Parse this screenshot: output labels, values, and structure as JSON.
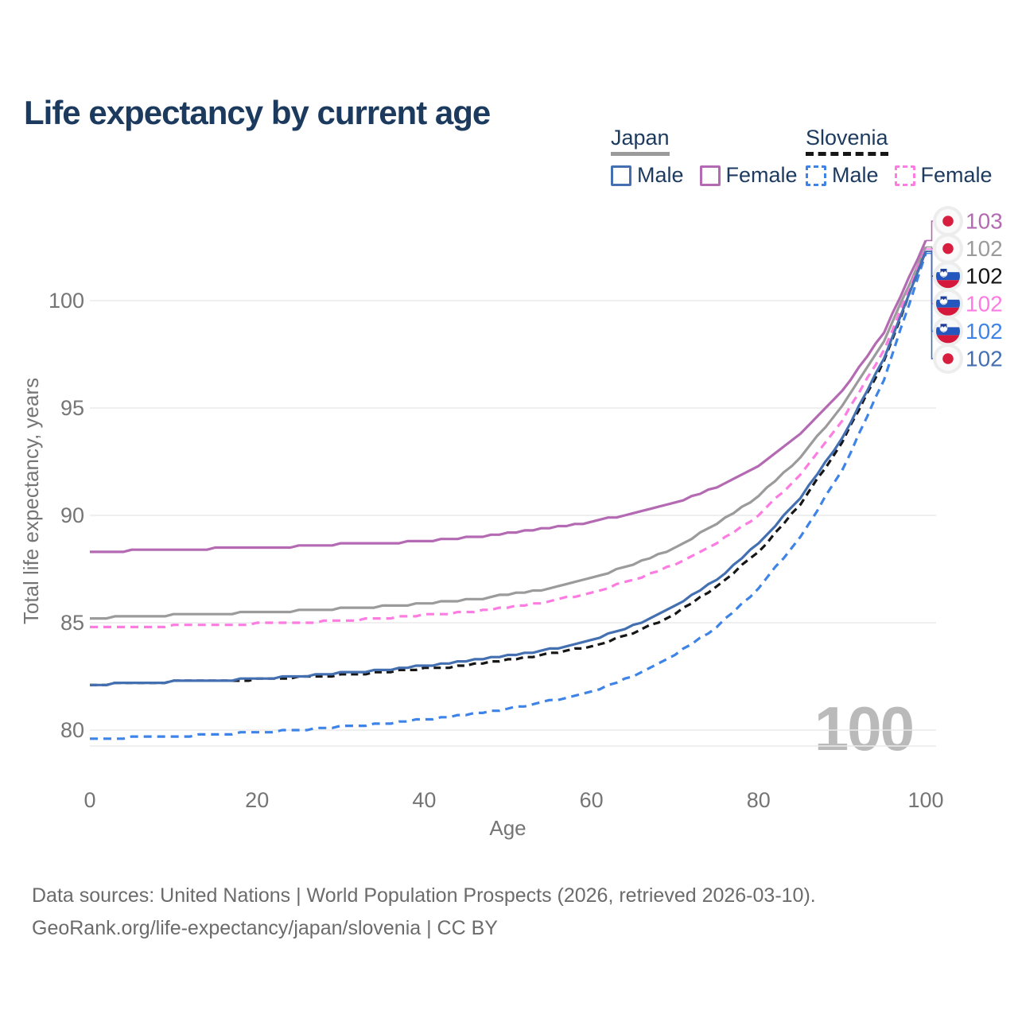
{
  "title": "Life expectancy by current age",
  "watermark": "100",
  "footer": {
    "line1": "Data sources: United Nations | World Population Prospects (2026, retrieved 2026-03-10).",
    "line2": "GeoRank.org/life-expectancy/japan/slovenia | CC BY"
  },
  "colors": {
    "background": "#ffffff",
    "title_text": "#1c3a5e",
    "navy_text": "#1d3a5f",
    "axis_text": "#757575",
    "grid": "#eaeaea",
    "watermark": "#bababa",
    "footer_text": "#6b6b6b",
    "flag_halo": "#ededee",
    "japan_flag_red": "#d81e3f",
    "slovenia_flag_blue": "#2457bd",
    "slovenia_flag_red": "#d6173c"
  },
  "legend": {
    "groups": [
      {
        "label": "Japan",
        "underline_style": "solid",
        "items": [
          {
            "label": "Male"
          },
          {
            "label": "Female"
          }
        ]
      },
      {
        "label": "Slovenia",
        "underline_style": "dashed",
        "items": [
          {
            "label": "Male"
          },
          {
            "label": "Female"
          }
        ]
      }
    ]
  },
  "chart_data": {
    "type": "line",
    "title": "Life expectancy by current age",
    "xlabel": "Age",
    "ylabel": "Total life expectancy, years",
    "x_ticks": [
      0,
      20,
      40,
      60,
      80,
      100
    ],
    "y_ticks": [
      80,
      85,
      90,
      95,
      100
    ],
    "xlim": [
      0,
      100
    ],
    "ylim": [
      79.2,
      103.2
    ],
    "grid": "horizontal",
    "legend_position": "top-right",
    "ages": [
      0,
      5,
      10,
      15,
      20,
      25,
      30,
      35,
      40,
      45,
      50,
      55,
      60,
      65,
      70,
      75,
      80,
      85,
      90,
      95,
      100
    ],
    "series": [
      {
        "id": "japan-female",
        "name": "Japan Female",
        "country": "Japan",
        "sex": "Female",
        "color": "#b46ab2",
        "style": "solid",
        "flag": "jp",
        "end_label": "103",
        "values": [
          88.3,
          88.35,
          88.4,
          88.45,
          88.5,
          88.55,
          88.65,
          88.7,
          88.8,
          88.95,
          89.15,
          89.4,
          89.7,
          90.1,
          90.6,
          91.3,
          92.3,
          93.8,
          95.8,
          98.5,
          102.8
        ]
      },
      {
        "id": "japan-both",
        "name": "Japan Both sexes",
        "country": "Japan",
        "sex": "Both",
        "color": "#9b9b9b",
        "style": "solid",
        "flag": "jp",
        "end_label": "102",
        "values": [
          85.2,
          85.3,
          85.35,
          85.4,
          85.5,
          85.55,
          85.65,
          85.75,
          85.9,
          86.05,
          86.3,
          86.6,
          87.1,
          87.7,
          88.5,
          89.6,
          90.9,
          92.7,
          95.1,
          98.1,
          102.5
        ]
      },
      {
        "id": "slovenia-both",
        "name": "Slovenia Both sexes",
        "country": "Slovenia",
        "sex": "Both",
        "color": "#161616",
        "style": "dashed",
        "flag": "si",
        "end_label": "102",
        "values": [
          82.1,
          82.2,
          82.25,
          82.3,
          82.35,
          82.45,
          82.55,
          82.7,
          82.85,
          83.0,
          83.25,
          83.55,
          83.9,
          84.5,
          85.4,
          86.7,
          88.3,
          90.5,
          93.4,
          97.2,
          102.3
        ]
      },
      {
        "id": "slovenia-female",
        "name": "Slovenia Female",
        "country": "Slovenia",
        "sex": "Female",
        "color": "#fd7ce1",
        "style": "dashed",
        "flag": "si",
        "end_label": "102",
        "values": [
          84.75,
          84.8,
          84.85,
          84.9,
          84.95,
          85.0,
          85.1,
          85.2,
          85.35,
          85.5,
          85.7,
          86.0,
          86.4,
          87.0,
          87.7,
          88.7,
          90.0,
          91.9,
          94.4,
          97.7,
          102.4
        ]
      },
      {
        "id": "slovenia-male",
        "name": "Slovenia Male",
        "country": "Slovenia",
        "sex": "Male",
        "color": "#3e84e8",
        "style": "dashed",
        "flag": "si",
        "end_label": "102",
        "values": [
          79.6,
          79.65,
          79.7,
          79.8,
          79.9,
          80.0,
          80.15,
          80.3,
          80.5,
          80.7,
          81.0,
          81.35,
          81.8,
          82.5,
          83.5,
          84.8,
          86.6,
          89.0,
          92.1,
          96.3,
          102.2
        ]
      },
      {
        "id": "japan-male",
        "name": "Japan Male",
        "country": "Japan",
        "sex": "Male",
        "color": "#4470b2",
        "style": "solid",
        "flag": "jp",
        "end_label": "102",
        "values": [
          82.1,
          82.2,
          82.25,
          82.3,
          82.4,
          82.5,
          82.65,
          82.8,
          83.0,
          83.2,
          83.45,
          83.75,
          84.2,
          84.85,
          85.8,
          87.0,
          88.7,
          90.8,
          93.6,
          97.3,
          102.3
        ]
      }
    ]
  }
}
